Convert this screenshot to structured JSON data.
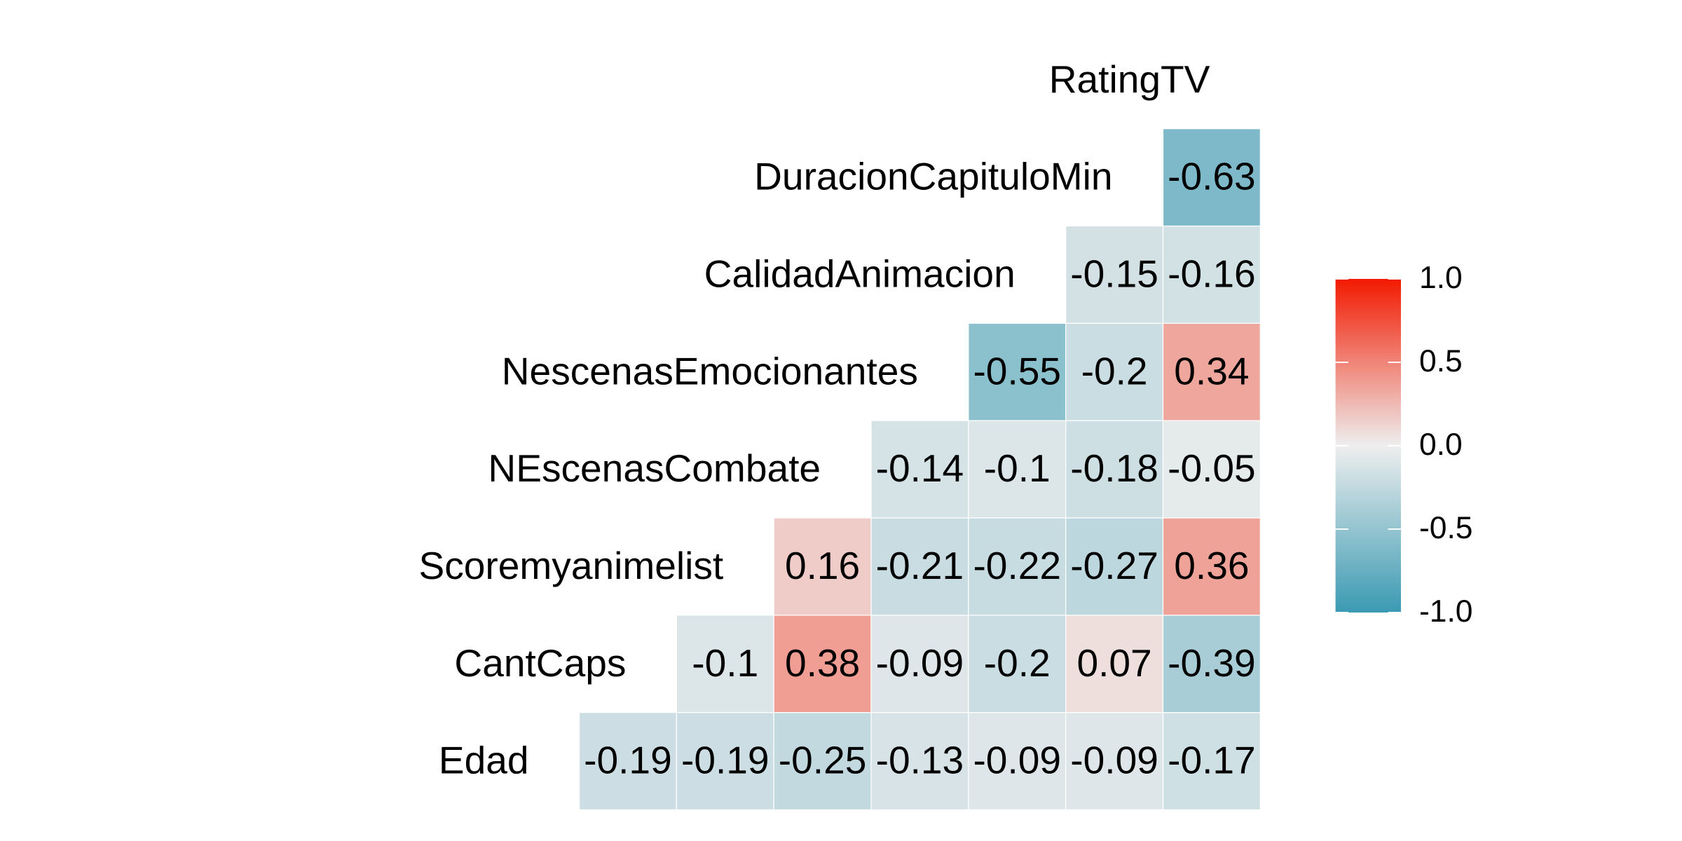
{
  "chart_data": {
    "type": "heatmap",
    "variables": [
      "Edad",
      "CantCaps",
      "Scoremyanimelist",
      "NEscenasCombate",
      "NescenasEmocionantes",
      "CalidadAnimacion",
      "DuracionCapituloMin",
      "RatingTV"
    ],
    "values": [
      [
        -0.19,
        -0.19,
        -0.25,
        -0.13,
        -0.09,
        -0.09,
        -0.17
      ],
      [
        -0.1,
        0.38,
        -0.09,
        -0.2,
        0.07,
        -0.39
      ],
      [
        0.16,
        -0.21,
        -0.22,
        -0.27,
        0.36
      ],
      [
        -0.14,
        -0.1,
        -0.18,
        -0.05
      ],
      [
        -0.55,
        -0.2,
        0.34
      ],
      [
        -0.15,
        -0.16
      ],
      [
        -0.63
      ]
    ],
    "colors": {
      "low": "#3A9AB2",
      "mid": "#EEEEEE",
      "high": "#F21A00"
    },
    "legend_lim": [
      -1,
      1
    ],
    "legend_ticks": [
      {
        "value": 1,
        "label": "1.0"
      },
      0.5,
      {
        "value": 0,
        "label": "0.0"
      },
      -0.5,
      {
        "value": -1,
        "label": "-1.0"
      }
    ]
  }
}
